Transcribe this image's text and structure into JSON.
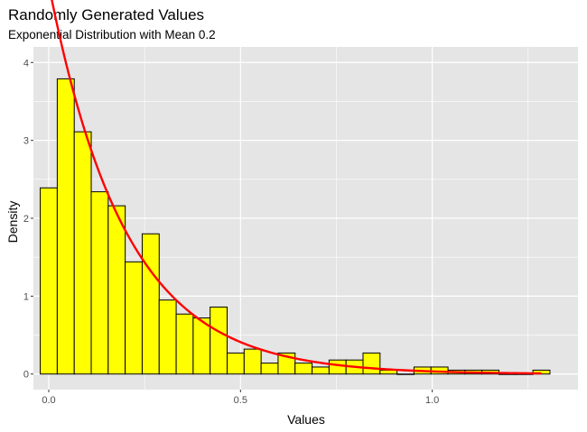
{
  "chart_data": {
    "type": "bar",
    "title": "Randomly Generated Values",
    "subtitle": "Exponential Distribution with Mean 0.2",
    "xlabel": "Values",
    "ylabel": "Density",
    "xlim": [
      -0.04,
      1.38
    ],
    "ylim": [
      -0.2,
      4.2
    ],
    "x_ticks": [
      0.0,
      0.5,
      1.0
    ],
    "x_tick_labels": [
      "0.0",
      "0.5",
      "1.0"
    ],
    "y_ticks": [
      0,
      1,
      2,
      3,
      4
    ],
    "y_tick_labels": [
      "0",
      "1",
      "2",
      "3",
      "4"
    ],
    "grid": true,
    "bin_width": 0.0443,
    "bin_centers": [
      0.0,
      0.0443,
      0.0886,
      0.1329,
      0.1772,
      0.2215,
      0.2658,
      0.3101,
      0.3544,
      0.3987,
      0.443,
      0.4873,
      0.5316,
      0.5759,
      0.6202,
      0.6645,
      0.7088,
      0.7531,
      0.7974,
      0.8417,
      0.886,
      0.9303,
      0.9746,
      1.0189,
      1.0632,
      1.1075,
      1.1518,
      1.1961,
      1.2404,
      1.2847
    ],
    "values": [
      2.39,
      3.79,
      3.11,
      2.34,
      2.16,
      1.44,
      1.8,
      0.95,
      0.77,
      0.72,
      0.86,
      0.27,
      0.32,
      0.14,
      0.27,
      0.14,
      0.09,
      0.18,
      0.18,
      0.27,
      0.05,
      0.0,
      0.09,
      0.09,
      0.05,
      0.05,
      0.05,
      0.0,
      0.0,
      0.05
    ],
    "bar_fill": "#ffff00",
    "bar_stroke": "#000000",
    "panel_background": "#e5e5e5",
    "curve": {
      "type": "line",
      "function": "exponential density",
      "rate": 5,
      "color": "#ff0000",
      "x_range": [
        0.0,
        1.2847
      ]
    }
  }
}
